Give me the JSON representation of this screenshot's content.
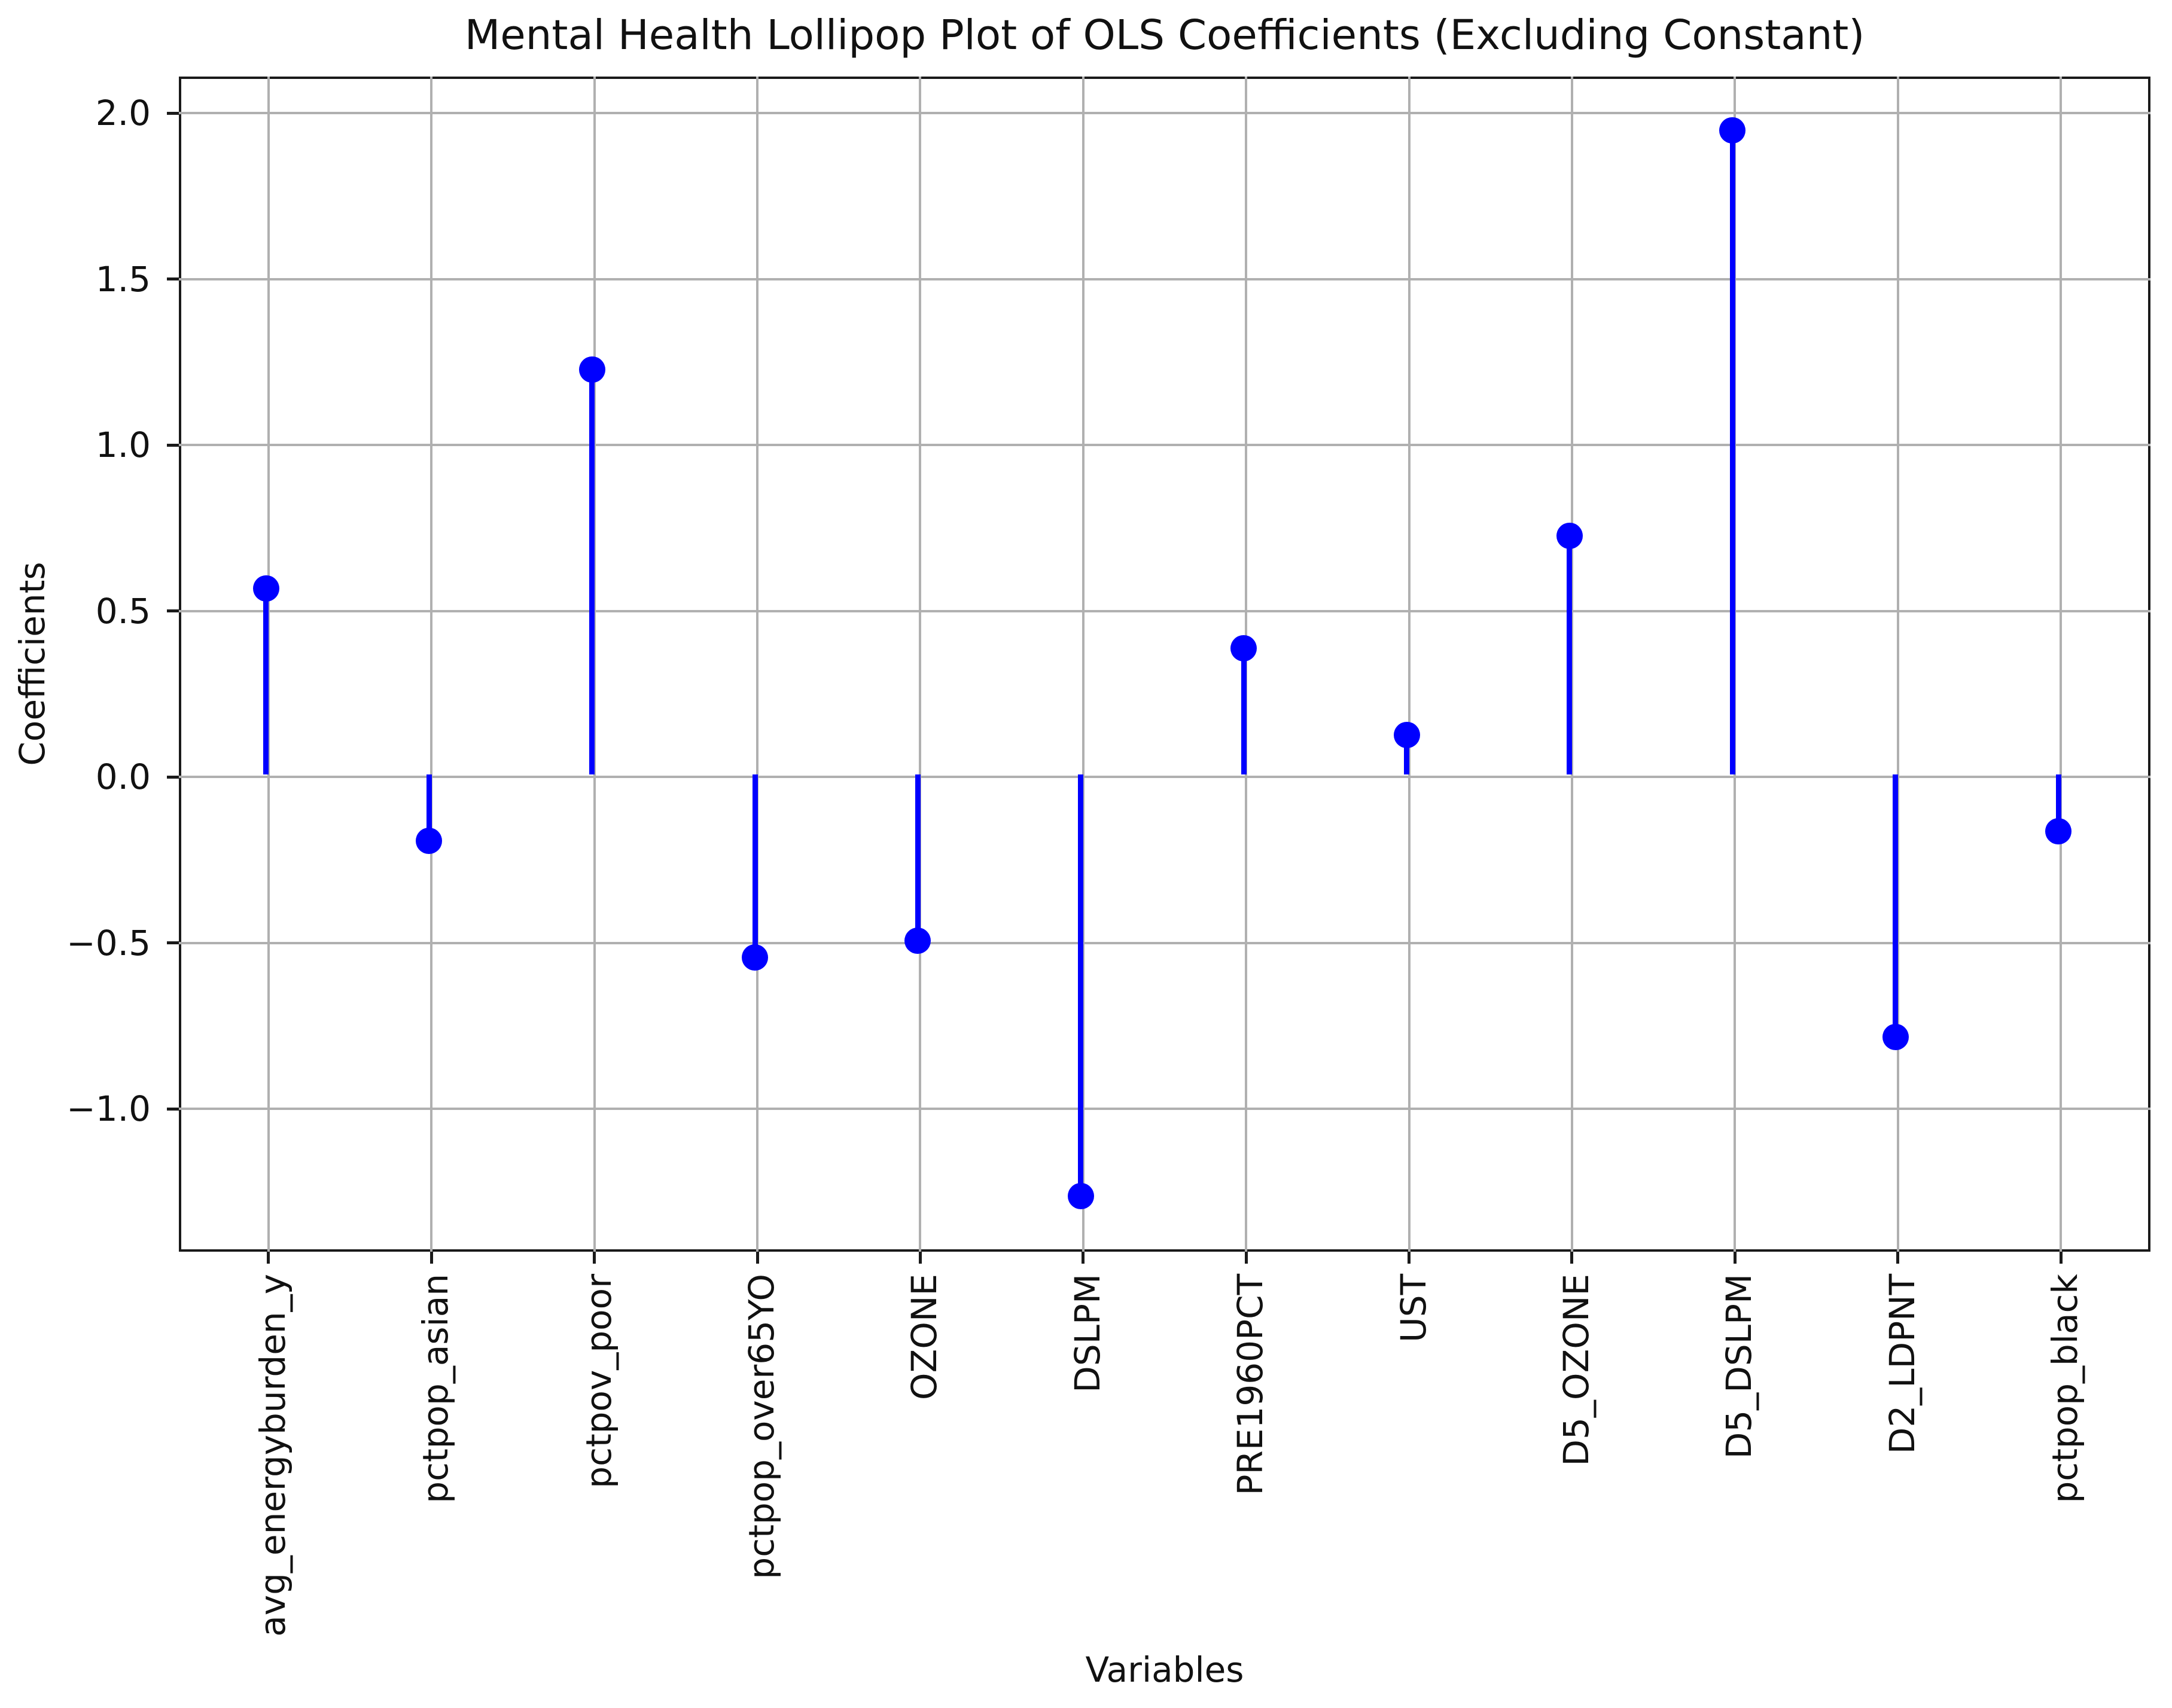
{
  "page": {
    "background": "#ffffff"
  },
  "chart_data": {
    "type": "scatter",
    "variant": "lollipop-stem",
    "title": "Mental Health Lollipop Plot of OLS Coefficients (Excluding Constant)",
    "xlabel": "Variables",
    "ylabel": "Coefficients",
    "categories": [
      "avg_energyburden_y",
      "pctpop_asian",
      "pctpov_poor",
      "pctpop_over65YO",
      "OZONE",
      "DSLPM",
      "PRE1960PCT",
      "UST",
      "D5_OZONE",
      "D5_DSLPM",
      "D2_LDPNT",
      "pctpop_black"
    ],
    "values": [
      0.56,
      -0.2,
      1.22,
      -0.55,
      -0.5,
      -1.27,
      0.38,
      0.12,
      0.72,
      1.94,
      -0.79,
      -0.17
    ],
    "baseline": 0.0,
    "yticks": [
      2.0,
      1.5,
      1.0,
      0.5,
      0.0,
      -0.5,
      -1.0
    ],
    "ytick_labels": [
      "2.0",
      "1.5",
      "1.0",
      "0.5",
      "0.0",
      "−0.5",
      "−1.0"
    ],
    "ylim": [
      -1.43,
      2.11
    ],
    "grid": true,
    "legend_position": "none",
    "stem_color": "#0000ff",
    "marker_color": "#0000ff",
    "grid_color": "#b0b0b0",
    "spine_color": "#1a1a1a"
  }
}
